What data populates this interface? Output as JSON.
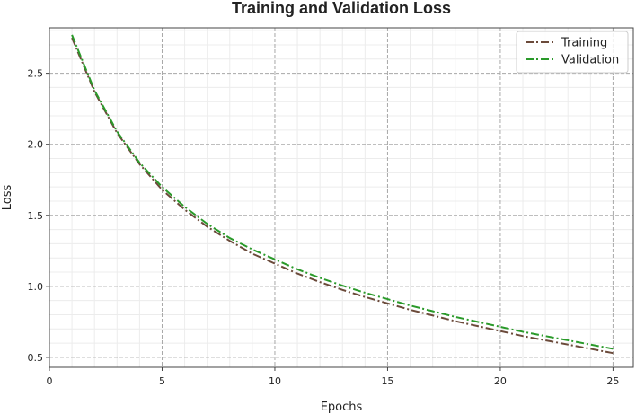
{
  "chart_data": {
    "type": "line",
    "title": "Training and Validation Loss",
    "xlabel": "Epochs",
    "ylabel": "Loss",
    "xlim": [
      0,
      25.9
    ],
    "ylim": [
      0.43,
      2.82
    ],
    "xticks": [
      0,
      5,
      10,
      15,
      20,
      25
    ],
    "yticks": [
      0.5,
      1.0,
      1.5,
      2.0,
      2.5
    ],
    "xtick_labels": [
      "0",
      "5",
      "10",
      "15",
      "20",
      "25"
    ],
    "ytick_labels": [
      "0.5",
      "1.0",
      "1.5",
      "2.0",
      "2.5"
    ],
    "grid": true,
    "minor_grid": true,
    "legend_position": "top-right",
    "series": [
      {
        "name": "Training",
        "color": "#6b4a3a",
        "x": [
          1,
          2,
          3,
          4,
          5,
          6,
          7,
          8,
          9,
          10,
          11,
          12,
          13,
          14,
          15,
          16,
          17,
          18,
          19,
          20,
          21,
          22,
          23,
          24,
          25
        ],
        "values": [
          2.75,
          2.37,
          2.08,
          1.86,
          1.68,
          1.54,
          1.42,
          1.32,
          1.23,
          1.16,
          1.09,
          1.03,
          0.975,
          0.925,
          0.88,
          0.835,
          0.795,
          0.755,
          0.72,
          0.685,
          0.65,
          0.62,
          0.59,
          0.56,
          0.53
        ]
      },
      {
        "name": "Validation",
        "color": "#2a9a2a",
        "x": [
          1,
          2,
          3,
          4,
          5,
          6,
          7,
          8,
          9,
          10,
          11,
          12,
          13,
          14,
          15,
          16,
          17,
          18,
          19,
          20,
          21,
          22,
          23,
          24,
          25
        ],
        "values": [
          2.77,
          2.38,
          2.09,
          1.87,
          1.7,
          1.56,
          1.44,
          1.34,
          1.26,
          1.19,
          1.12,
          1.06,
          1.005,
          0.955,
          0.91,
          0.865,
          0.825,
          0.785,
          0.75,
          0.715,
          0.68,
          0.65,
          0.62,
          0.59,
          0.56
        ]
      }
    ]
  }
}
